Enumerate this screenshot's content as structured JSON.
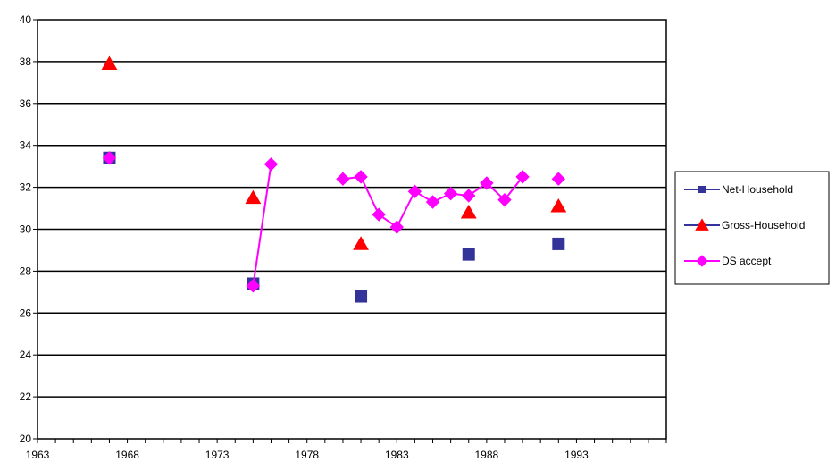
{
  "chart_data": {
    "type": "scatter",
    "title": "",
    "xlabel": "",
    "ylabel": "",
    "xlim": [
      1963,
      1998
    ],
    "ylim": [
      20,
      40
    ],
    "x_ticks": [
      1963,
      1968,
      1973,
      1978,
      1983,
      1988,
      1993
    ],
    "y_ticks": [
      20,
      22,
      24,
      26,
      28,
      30,
      32,
      34,
      36,
      38,
      40
    ],
    "grid": "horizontal",
    "legend_position": "right",
    "series": [
      {
        "name": "Net-Household",
        "marker": "square",
        "connect": false,
        "color": "#333399",
        "points": [
          {
            "x": 1967,
            "y": 33.4
          },
          {
            "x": 1975,
            "y": 27.4
          },
          {
            "x": 1981,
            "y": 26.8
          },
          {
            "x": 1987,
            "y": 28.8
          },
          {
            "x": 1992,
            "y": 29.3
          }
        ]
      },
      {
        "name": "Gross-Household",
        "marker": "triangle",
        "connect": false,
        "color": "#ff0000",
        "points": [
          {
            "x": 1967,
            "y": 37.9
          },
          {
            "x": 1975,
            "y": 31.5
          },
          {
            "x": 1981,
            "y": 29.3
          },
          {
            "x": 1987,
            "y": 30.8
          },
          {
            "x": 1992,
            "y": 31.1
          }
        ]
      },
      {
        "name": "DS accept",
        "marker": "diamond",
        "connect": true,
        "color": "#ff00ff",
        "points": [
          {
            "x": 1967,
            "y": 33.4
          },
          null,
          {
            "x": 1975,
            "y": 27.3
          },
          {
            "x": 1976,
            "y": 33.1
          },
          null,
          {
            "x": 1980,
            "y": 32.4
          },
          {
            "x": 1981,
            "y": 32.5
          },
          {
            "x": 1982,
            "y": 30.7
          },
          {
            "x": 1983,
            "y": 30.1
          },
          {
            "x": 1984,
            "y": 31.8
          },
          {
            "x": 1985,
            "y": 31.3
          },
          {
            "x": 1986,
            "y": 31.7
          },
          {
            "x": 1987,
            "y": 31.6
          },
          {
            "x": 1988,
            "y": 32.2
          },
          {
            "x": 1989,
            "y": 31.4
          },
          {
            "x": 1990,
            "y": 32.5
          },
          null,
          {
            "x": 1992,
            "y": 32.4
          }
        ]
      }
    ]
  }
}
